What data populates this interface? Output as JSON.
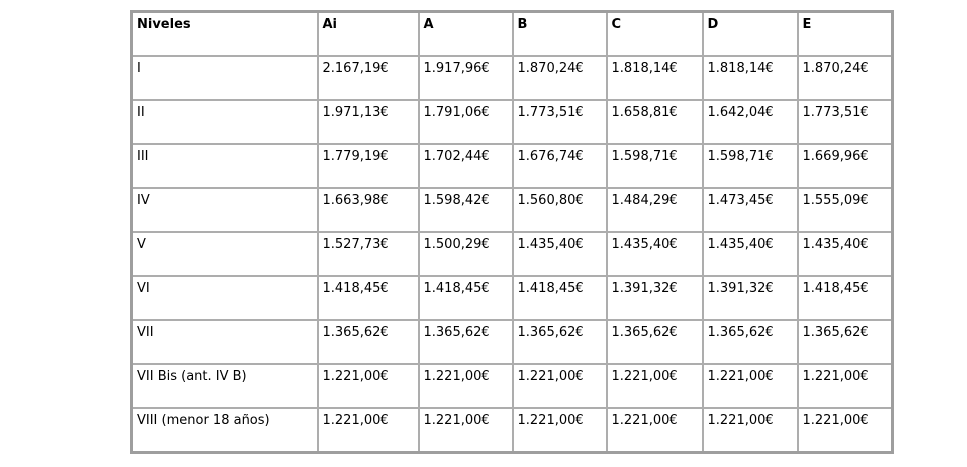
{
  "table": {
    "columns": [
      "Niveles",
      "Ai",
      "A",
      "B",
      "C",
      "D",
      "E"
    ],
    "rows": [
      {
        "nivel": "I",
        "values": [
          "2.167,19€",
          "1.917,96€",
          "1.870,24€",
          "1.818,14€",
          "1.818,14€",
          "1.870,24€"
        ]
      },
      {
        "nivel": "II",
        "values": [
          "1.971,13€",
          "1.791,06€",
          "1.773,51€",
          "1.658,81€",
          "1.642,04€",
          "1.773,51€"
        ]
      },
      {
        "nivel": "III",
        "values": [
          "1.779,19€",
          "1.702,44€",
          "1.676,74€",
          "1.598,71€",
          "1.598,71€",
          "1.669,96€"
        ]
      },
      {
        "nivel": "IV",
        "values": [
          "1.663,98€",
          "1.598,42€",
          "1.560,80€",
          "1.484,29€",
          "1.473,45€",
          "1.555,09€"
        ]
      },
      {
        "nivel": "V",
        "values": [
          "1.527,73€",
          "1.500,29€",
          "1.435,40€",
          "1.435,40€",
          "1.435,40€",
          "1.435,40€"
        ]
      },
      {
        "nivel": "VI",
        "values": [
          "1.418,45€",
          "1.418,45€",
          "1.418,45€",
          "1.391,32€",
          "1.391,32€",
          "1.418,45€"
        ]
      },
      {
        "nivel": "VII",
        "values": [
          "1.365,62€",
          "1.365,62€",
          "1.365,62€",
          "1.365,62€",
          "1.365,62€",
          "1.365,62€"
        ]
      },
      {
        "nivel": "VII Bis (ant. IV B)",
        "values": [
          "1.221,00€",
          "1.221,00€",
          "1.221,00€",
          "1.221,00€",
          "1.221,00€",
          "1.221,00€"
        ]
      },
      {
        "nivel": "VIII (menor 18 años)",
        "values": [
          "1.221,00€",
          "1.221,00€",
          "1.221,00€",
          "1.221,00€",
          "1.221,00€",
          "1.221,00€"
        ]
      }
    ],
    "colors": {
      "border_outer": "#9e9e9e",
      "border_inner": "#adadad",
      "cell_background": "#ffffff",
      "text": "#000000"
    }
  }
}
